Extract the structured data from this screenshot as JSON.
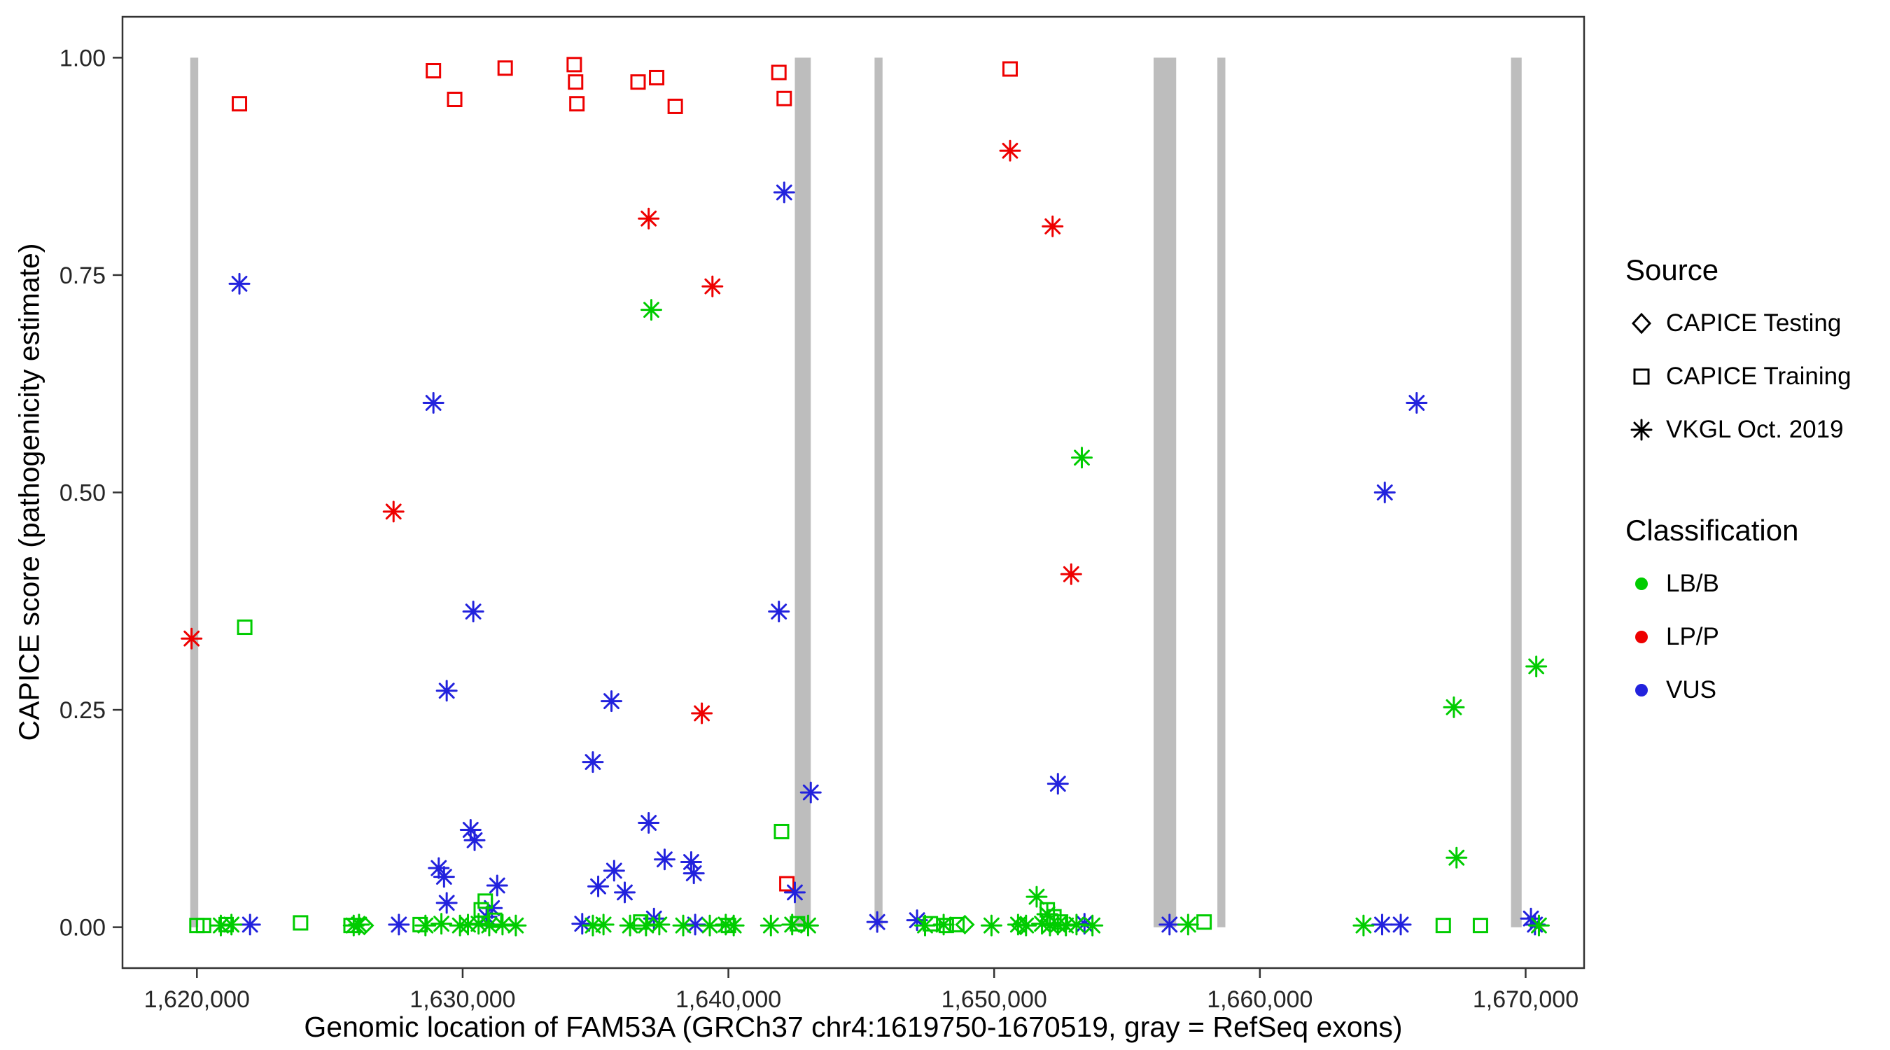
{
  "chart_data": {
    "type": "scatter",
    "title": "",
    "xlabel": "Genomic location of FAM53A (GRCh37 chr4:1619750-1670519, gray = RefSeq exons)",
    "ylabel": "CAPICE score (pathogenicity estimate)",
    "x_range": [
      1617200,
      1672200
    ],
    "y_range": [
      -0.047,
      1.047
    ],
    "x_ticks": [
      {
        "value": 1620000,
        "label": "1,620,000"
      },
      {
        "value": 1630000,
        "label": "1,630,000"
      },
      {
        "value": 1640000,
        "label": "1,640,000"
      },
      {
        "value": 1650000,
        "label": "1,650,000"
      },
      {
        "value": 1660000,
        "label": "1,660,000"
      },
      {
        "value": 1670000,
        "label": "1,670,000"
      }
    ],
    "y_ticks": [
      {
        "value": 0.0,
        "label": "0.00"
      },
      {
        "value": 0.25,
        "label": "0.25"
      },
      {
        "value": 0.5,
        "label": "0.50"
      },
      {
        "value": 0.75,
        "label": "0.75"
      },
      {
        "value": 1.0,
        "label": "1.00"
      }
    ],
    "exon_color": "#BDBDBD",
    "panel_border_color": "#333333",
    "tick_color": "#333333",
    "exons": [
      {
        "start": 1619750,
        "end": 1620050
      },
      {
        "start": 1642500,
        "end": 1643100
      },
      {
        "start": 1645500,
        "end": 1645800
      },
      {
        "start": 1656000,
        "end": 1656850
      },
      {
        "start": 1658400,
        "end": 1658700
      },
      {
        "start": 1669450,
        "end": 1669850
      }
    ],
    "legend": {
      "source": {
        "title": "Source",
        "items": [
          {
            "label": "CAPICE Testing",
            "shape": "diamond"
          },
          {
            "label": "CAPICE Training",
            "shape": "square"
          },
          {
            "label": "VKGL Oct. 2019",
            "shape": "asterisk"
          }
        ]
      },
      "classification": {
        "title": "Classification",
        "items": [
          {
            "label": "LB/B",
            "color": "#00CC00"
          },
          {
            "label": "LP/P",
            "color": "#EE0000"
          },
          {
            "label": "VUS",
            "color": "#2222DD"
          }
        ]
      }
    },
    "colors": {
      "LB/B": "#00CC00",
      "LP/P": "#EE0000",
      "VUS": "#2222DD"
    },
    "source_shapes": {
      "testing": "diamond",
      "training": "square",
      "vkgl": "asterisk"
    },
    "points": [
      [
        1621600,
        0.947,
        "LP/P",
        "training"
      ],
      [
        1628900,
        0.985,
        "LP/P",
        "training"
      ],
      [
        1629700,
        0.952,
        "LP/P",
        "training"
      ],
      [
        1631600,
        0.988,
        "LP/P",
        "training"
      ],
      [
        1634200,
        0.992,
        "LP/P",
        "training"
      ],
      [
        1634250,
        0.972,
        "LP/P",
        "training"
      ],
      [
        1634300,
        0.947,
        "LP/P",
        "training"
      ],
      [
        1636600,
        0.972,
        "LP/P",
        "training"
      ],
      [
        1637300,
        0.977,
        "LP/P",
        "training"
      ],
      [
        1638000,
        0.944,
        "LP/P",
        "training"
      ],
      [
        1641900,
        0.983,
        "LP/P",
        "training"
      ],
      [
        1642100,
        0.953,
        "LP/P",
        "training"
      ],
      [
        1650600,
        0.987,
        "LP/P",
        "training"
      ],
      [
        1642200,
        0.05,
        "LP/P",
        "training"
      ],
      [
        1619800,
        0.332,
        "LP/P",
        "vkgl"
      ],
      [
        1627400,
        0.478,
        "LP/P",
        "vkgl"
      ],
      [
        1637000,
        0.815,
        "LP/P",
        "vkgl"
      ],
      [
        1639400,
        0.737,
        "LP/P",
        "vkgl"
      ],
      [
        1639000,
        0.246,
        "LP/P",
        "vkgl"
      ],
      [
        1650600,
        0.893,
        "LP/P",
        "vkgl"
      ],
      [
        1652200,
        0.806,
        "LP/P",
        "vkgl"
      ],
      [
        1652900,
        0.406,
        "LP/P",
        "vkgl"
      ],
      [
        1621600,
        0.74,
        "VUS",
        "vkgl"
      ],
      [
        1628900,
        0.603,
        "VUS",
        "vkgl"
      ],
      [
        1642100,
        0.845,
        "VUS",
        "vkgl"
      ],
      [
        1629400,
        0.272,
        "VUS",
        "vkgl"
      ],
      [
        1630400,
        0.363,
        "VUS",
        "vkgl"
      ],
      [
        1641900,
        0.363,
        "VUS",
        "vkgl"
      ],
      [
        1635600,
        0.26,
        "VUS",
        "vkgl"
      ],
      [
        1634900,
        0.19,
        "VUS",
        "vkgl"
      ],
      [
        1643100,
        0.155,
        "VUS",
        "vkgl"
      ],
      [
        1652400,
        0.165,
        "VUS",
        "vkgl"
      ],
      [
        1665900,
        0.603,
        "VUS",
        "vkgl"
      ],
      [
        1664700,
        0.5,
        "VUS",
        "vkgl"
      ],
      [
        1637000,
        0.12,
        "VUS",
        "vkgl"
      ],
      [
        1630300,
        0.112,
        "VUS",
        "vkgl"
      ],
      [
        1630450,
        0.1,
        "VUS",
        "vkgl"
      ],
      [
        1629100,
        0.068,
        "VUS",
        "vkgl"
      ],
      [
        1629300,
        0.058,
        "VUS",
        "vkgl"
      ],
      [
        1638600,
        0.075,
        "VUS",
        "vkgl"
      ],
      [
        1638700,
        0.062,
        "VUS",
        "vkgl"
      ],
      [
        1631300,
        0.048,
        "VUS",
        "vkgl"
      ],
      [
        1635100,
        0.047,
        "VUS",
        "vkgl"
      ],
      [
        1635700,
        0.065,
        "VUS",
        "vkgl"
      ],
      [
        1636100,
        0.04,
        "VUS",
        "vkgl"
      ],
      [
        1637600,
        0.078,
        "VUS",
        "vkgl"
      ],
      [
        1642500,
        0.04,
        "VUS",
        "vkgl"
      ],
      [
        1629400,
        0.028,
        "VUS",
        "vkgl"
      ],
      [
        1631100,
        0.022,
        "VUS",
        "vkgl"
      ],
      [
        1630900,
        0.012,
        "VUS",
        "vkgl"
      ],
      [
        1622000,
        0.003,
        "VUS",
        "vkgl"
      ],
      [
        1627600,
        0.003,
        "VUS",
        "vkgl"
      ],
      [
        1634500,
        0.004,
        "VUS",
        "vkgl"
      ],
      [
        1637200,
        0.01,
        "VUS",
        "vkgl"
      ],
      [
        1638750,
        0.003,
        "VUS",
        "vkgl"
      ],
      [
        1645600,
        0.006,
        "VUS",
        "vkgl"
      ],
      [
        1647100,
        0.008,
        "VUS",
        "vkgl"
      ],
      [
        1653400,
        0.004,
        "VUS",
        "vkgl"
      ],
      [
        1656600,
        0.003,
        "VUS",
        "vkgl"
      ],
      [
        1664600,
        0.003,
        "VUS",
        "vkgl"
      ],
      [
        1665300,
        0.003,
        "VUS",
        "vkgl"
      ],
      [
        1670200,
        0.01,
        "VUS",
        "vkgl"
      ],
      [
        1670350,
        0.003,
        "VUS",
        "vkgl"
      ],
      [
        1637100,
        0.71,
        "LB/B",
        "vkgl"
      ],
      [
        1653300,
        0.54,
        "LB/B",
        "vkgl"
      ],
      [
        1670400,
        0.3,
        "LB/B",
        "vkgl"
      ],
      [
        1667300,
        0.253,
        "LB/B",
        "vkgl"
      ],
      [
        1667400,
        0.08,
        "LB/B",
        "vkgl"
      ],
      [
        1651600,
        0.035,
        "LB/B",
        "vkgl"
      ],
      [
        1652000,
        0.015,
        "LB/B",
        "vkgl"
      ],
      [
        1620900,
        0.002,
        "LB/B",
        "vkgl"
      ],
      [
        1621300,
        0.003,
        "LB/B",
        "vkgl"
      ],
      [
        1625900,
        0.002,
        "LB/B",
        "vkgl"
      ],
      [
        1626100,
        0.003,
        "LB/B",
        "vkgl"
      ],
      [
        1628600,
        0.002,
        "LB/B",
        "vkgl"
      ],
      [
        1629200,
        0.004,
        "LB/B",
        "vkgl"
      ],
      [
        1629900,
        0.002,
        "LB/B",
        "vkgl"
      ],
      [
        1630200,
        0.003,
        "LB/B",
        "vkgl"
      ],
      [
        1630600,
        0.004,
        "LB/B",
        "vkgl"
      ],
      [
        1631000,
        0.002,
        "LB/B",
        "vkgl"
      ],
      [
        1631500,
        0.003,
        "LB/B",
        "vkgl"
      ],
      [
        1632000,
        0.002,
        "LB/B",
        "vkgl"
      ],
      [
        1634900,
        0.002,
        "LB/B",
        "vkgl"
      ],
      [
        1635300,
        0.003,
        "LB/B",
        "vkgl"
      ],
      [
        1636300,
        0.002,
        "LB/B",
        "vkgl"
      ],
      [
        1636900,
        0.002,
        "LB/B",
        "vkgl"
      ],
      [
        1637400,
        0.003,
        "LB/B",
        "vkgl"
      ],
      [
        1638300,
        0.002,
        "LB/B",
        "vkgl"
      ],
      [
        1639300,
        0.002,
        "LB/B",
        "vkgl"
      ],
      [
        1639900,
        0.003,
        "LB/B",
        "vkgl"
      ],
      [
        1640200,
        0.002,
        "LB/B",
        "vkgl"
      ],
      [
        1641600,
        0.002,
        "LB/B",
        "vkgl"
      ],
      [
        1642400,
        0.003,
        "LB/B",
        "vkgl"
      ],
      [
        1643000,
        0.002,
        "LB/B",
        "vkgl"
      ],
      [
        1647400,
        0.002,
        "LB/B",
        "vkgl"
      ],
      [
        1648100,
        0.003,
        "LB/B",
        "vkgl"
      ],
      [
        1649900,
        0.002,
        "LB/B",
        "vkgl"
      ],
      [
        1650900,
        0.003,
        "LB/B",
        "vkgl"
      ],
      [
        1651200,
        0.002,
        "LB/B",
        "vkgl"
      ],
      [
        1651800,
        0.004,
        "LB/B",
        "vkgl"
      ],
      [
        1652100,
        0.002,
        "LB/B",
        "vkgl"
      ],
      [
        1652400,
        0.003,
        "LB/B",
        "vkgl"
      ],
      [
        1652700,
        0.002,
        "LB/B",
        "vkgl"
      ],
      [
        1653100,
        0.003,
        "LB/B",
        "vkgl"
      ],
      [
        1653700,
        0.002,
        "LB/B",
        "vkgl"
      ],
      [
        1657300,
        0.003,
        "LB/B",
        "vkgl"
      ],
      [
        1663900,
        0.002,
        "LB/B",
        "vkgl"
      ],
      [
        1670500,
        0.002,
        "LB/B",
        "vkgl"
      ],
      [
        1621800,
        0.345,
        "LB/B",
        "training"
      ],
      [
        1642000,
        0.11,
        "LB/B",
        "training"
      ],
      [
        1620000,
        0.002,
        "LB/B",
        "training"
      ],
      [
        1620250,
        0.002,
        "LB/B",
        "training"
      ],
      [
        1621100,
        0.003,
        "LB/B",
        "training"
      ],
      [
        1623900,
        0.005,
        "LB/B",
        "training"
      ],
      [
        1625800,
        0.002,
        "LB/B",
        "training"
      ],
      [
        1628400,
        0.003,
        "LB/B",
        "training"
      ],
      [
        1630700,
        0.02,
        "LB/B",
        "training"
      ],
      [
        1630850,
        0.03,
        "LB/B",
        "training"
      ],
      [
        1631200,
        0.008,
        "LB/B",
        "training"
      ],
      [
        1636700,
        0.006,
        "LB/B",
        "training"
      ],
      [
        1640000,
        0.002,
        "LB/B",
        "training"
      ],
      [
        1642600,
        0.004,
        "LB/B",
        "training"
      ],
      [
        1647600,
        0.004,
        "LB/B",
        "training"
      ],
      [
        1648200,
        0.002,
        "LB/B",
        "training"
      ],
      [
        1648600,
        0.003,
        "LB/B",
        "training"
      ],
      [
        1652000,
        0.02,
        "LB/B",
        "training"
      ],
      [
        1652250,
        0.012,
        "LB/B",
        "training"
      ],
      [
        1652500,
        0.006,
        "LB/B",
        "training"
      ],
      [
        1657900,
        0.006,
        "LB/B",
        "training"
      ],
      [
        1666900,
        0.002,
        "LB/B",
        "training"
      ],
      [
        1668300,
        0.002,
        "LB/B",
        "training"
      ],
      [
        1626300,
        0.002,
        "LB/B",
        "testing"
      ],
      [
        1648900,
        0.003,
        "LB/B",
        "testing"
      ],
      [
        1651000,
        0.002,
        "LB/B",
        "testing"
      ]
    ]
  }
}
